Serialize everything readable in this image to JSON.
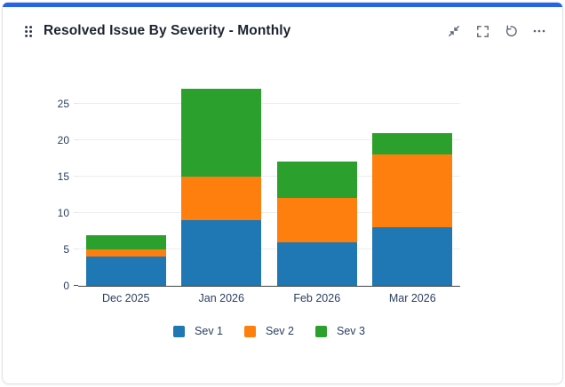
{
  "card": {
    "title": "Resolved Issue By Severity - Monthly",
    "accent_color": "#2563eb"
  },
  "toolbar": {
    "buttons": [
      {
        "icon": "shrink-icon"
      },
      {
        "icon": "fullscreen-icon"
      },
      {
        "icon": "refresh-icon"
      },
      {
        "icon": "more-icon"
      }
    ]
  },
  "icons": {
    "drag_handle": "drag-handle-icon"
  },
  "chart_data": {
    "type": "bar",
    "bar_mode": "stacked",
    "title": "Resolved Issue By Severity - Monthly",
    "categories": [
      "Dec 2025",
      "Jan 2026",
      "Feb 2026",
      "Mar 2026"
    ],
    "series": [
      {
        "name": "Sev 1",
        "color": "#1f77b4",
        "values": [
          4,
          9,
          6,
          8
        ]
      },
      {
        "name": "Sev 2",
        "color": "#ff7f0e",
        "values": [
          1,
          6,
          6,
          10
        ]
      },
      {
        "name": "Sev 3",
        "color": "#2ca02c",
        "values": [
          2,
          12,
          5,
          3
        ]
      }
    ],
    "totals": [
      7,
      27,
      17,
      21
    ],
    "xlabel": "",
    "ylabel": "",
    "yticks": [
      0,
      5,
      10,
      15,
      20,
      25
    ],
    "ylim": [
      0,
      28
    ],
    "grid": true,
    "legend_position": "bottom",
    "axis_text_color": "#2a3f5f",
    "grid_color": "#ebedf0",
    "axis_line_color": "#444444"
  }
}
